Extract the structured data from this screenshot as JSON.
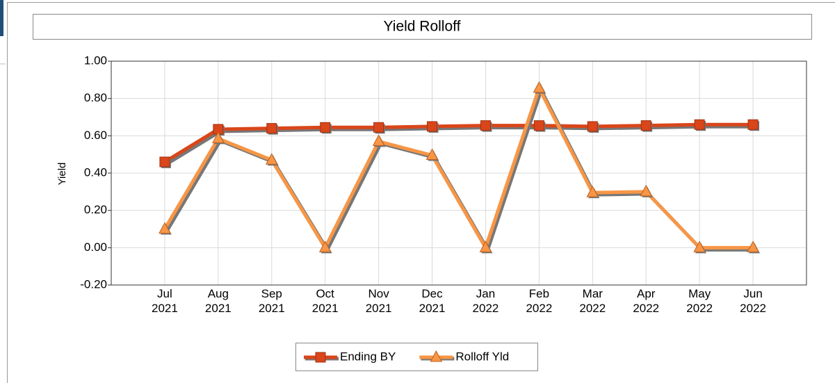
{
  "chart_data": {
    "type": "line",
    "title": "Yield Rolloff",
    "y_label": "Yield",
    "categories": [
      "Jul 2021",
      "Aug 2021",
      "Sep 2021",
      "Oct 2021",
      "Nov 2021",
      "Dec 2021",
      "Jan 2022",
      "Feb 2022",
      "Mar 2022",
      "Apr 2022",
      "May 2022",
      "Jun 2022"
    ],
    "series": [
      {
        "name": "Ending BY",
        "color": "#d9461a",
        "marker": "square",
        "values": [
          0.46,
          0.635,
          0.64,
          0.645,
          0.645,
          0.65,
          0.655,
          0.655,
          0.65,
          0.655,
          0.66,
          0.66
        ]
      },
      {
        "name": "Rolloff Yld",
        "color": "#f79646",
        "marker": "triangle",
        "values": [
          0.1,
          0.585,
          0.47,
          0.0,
          0.57,
          0.495,
          0.0,
          0.855,
          0.295,
          0.3,
          0.0,
          0.0
        ]
      }
    ],
    "ylim": [
      -0.2,
      1.0
    ],
    "yticks": [
      {
        "value": -0.2,
        "label": "-0.20"
      },
      {
        "value": 0,
        "label": "0.00"
      },
      {
        "value": 0.2,
        "label": "0.20"
      },
      {
        "value": 0.4,
        "label": "0.40"
      },
      {
        "value": 0.6,
        "label": "0.60"
      },
      {
        "value": 0.8,
        "label": "0.80"
      },
      {
        "value": 1.0,
        "label": "1.00"
      }
    ],
    "grid": true,
    "legend": "bottom"
  }
}
